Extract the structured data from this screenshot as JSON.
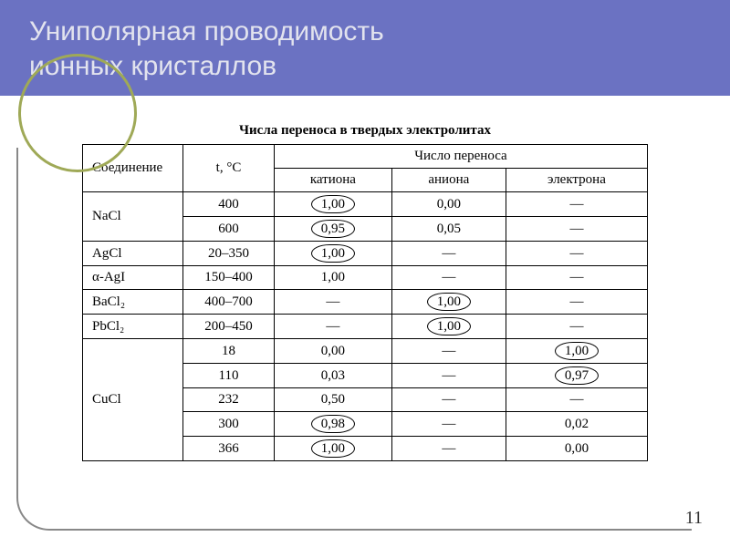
{
  "slide": {
    "title_line1": "Униполярная проводимость",
    "title_line2": "ионных кристаллов",
    "page_number": "11",
    "header_bg": "#6b72c2",
    "title_color": "#e2e3ee",
    "accent_circle_color": "#9fa957"
  },
  "table": {
    "caption": "Числа переноса в твердых электролитах",
    "headers": {
      "compound": "Соединение",
      "temp": "t, °C",
      "transfer_number": "Число переноса",
      "cation": "катиона",
      "anion": "аниона",
      "electron": "электрона"
    },
    "rows": [
      {
        "compound": "NaCl",
        "temp": "400",
        "cation": "1,00",
        "anion": "0,00",
        "electron": "—",
        "circ": [
          "cation"
        ]
      },
      {
        "compound": "",
        "temp": "600",
        "cation": "0,95",
        "anion": "0,05",
        "electron": "—",
        "circ": [
          "cation"
        ]
      },
      {
        "compound": "AgCl",
        "temp": "20–350",
        "cation": "1,00",
        "anion": "—",
        "electron": "—",
        "circ": [
          "cation"
        ]
      },
      {
        "compound": "α-AgI",
        "temp": "150–400",
        "cation": "1,00",
        "anion": "—",
        "electron": "—",
        "circ": []
      },
      {
        "compound": "BaCl₂",
        "temp": "400–700",
        "cation": "—",
        "anion": "1,00",
        "electron": "—",
        "circ": [
          "anion"
        ]
      },
      {
        "compound": "PbCl₂",
        "temp": "200–450",
        "cation": "—",
        "anion": "1,00",
        "electron": "—",
        "circ": [
          "anion"
        ]
      },
      {
        "compound": "CuCl",
        "temp": "18",
        "cation": "0,00",
        "anion": "—",
        "electron": "1,00",
        "circ": [
          "electron"
        ]
      },
      {
        "compound": "",
        "temp": "110",
        "cation": "0,03",
        "anion": "—",
        "electron": "0,97",
        "circ": [
          "electron"
        ]
      },
      {
        "compound": "",
        "temp": "232",
        "cation": "0,50",
        "anion": "—",
        "electron": "—",
        "circ": []
      },
      {
        "compound": "",
        "temp": "300",
        "cation": "0,98",
        "anion": "—",
        "electron": "0,02",
        "circ": [
          "cation"
        ]
      },
      {
        "compound": "",
        "temp": "366",
        "cation": "1,00",
        "anion": "—",
        "electron": "0,00",
        "circ": [
          "cation"
        ]
      }
    ],
    "compound_spans": [
      2,
      1,
      1,
      1,
      1,
      5
    ]
  }
}
